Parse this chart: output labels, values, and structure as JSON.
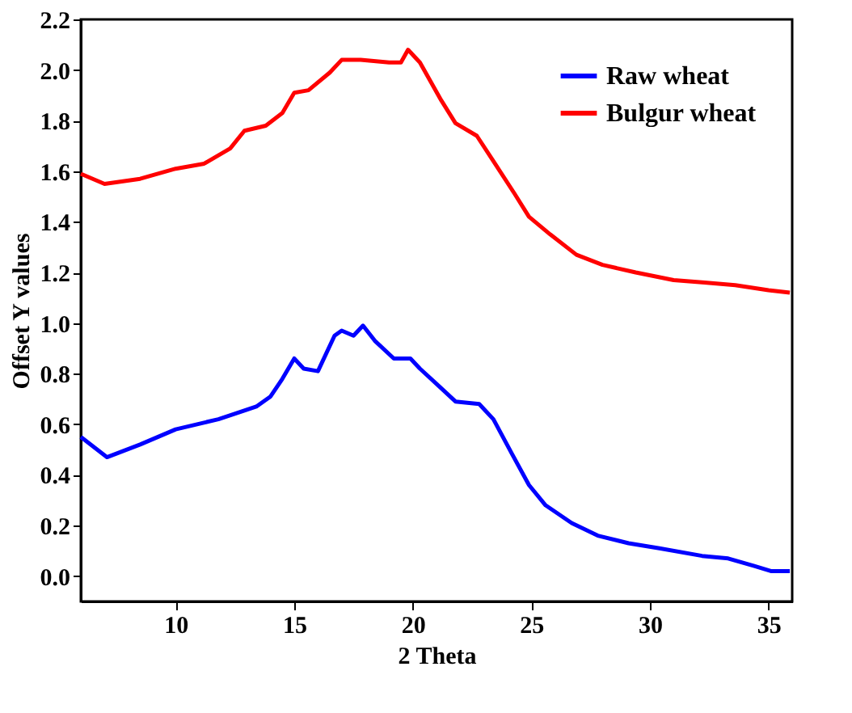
{
  "chart_data": {
    "type": "line",
    "xlabel": "2 Theta",
    "ylabel": "Offset Y values",
    "xlim": [
      6,
      36
    ],
    "xticks": [
      10,
      15,
      20,
      25,
      30,
      35
    ],
    "ylim": [
      -0.1,
      2.2
    ],
    "yticks": [
      {
        "value": 0,
        "label": "0.0"
      },
      {
        "value": 0.2,
        "label": "0.2"
      },
      {
        "value": 0.4,
        "label": "0.4"
      },
      {
        "value": 0.6,
        "label": "0.6"
      },
      {
        "value": 0.8,
        "label": "0.8"
      },
      {
        "value": 1.0,
        "label": "1.0"
      },
      {
        "value": 1.2,
        "label": "1.2"
      },
      {
        "value": 1.4,
        "label": "1.4"
      },
      {
        "value": 1.6,
        "label": "1.6"
      },
      {
        "value": 1.8,
        "label": "1.8"
      },
      {
        "value": 2.0,
        "label": "2.0"
      },
      {
        "value": 2.2,
        "label": "2.2"
      }
    ],
    "grid": false,
    "legend": "top right",
    "marker": "none",
    "line_style": "solid",
    "series": [
      {
        "name": "Raw wheat",
        "color": "#0000ff",
        "x": [
          6.0,
          7.1,
          8.5,
          10.0,
          11.8,
          13.4,
          14.0,
          14.5,
          15.0,
          15.4,
          16.0,
          16.7,
          17.0,
          17.5,
          17.9,
          18.4,
          19.2,
          19.9,
          20.3,
          21.0,
          21.8,
          22.8,
          23.4,
          24.2,
          24.9,
          25.6,
          26.7,
          27.8,
          29.1,
          30.4,
          32.2,
          33.3,
          34.4,
          35.1,
          35.9
        ],
        "values": [
          0.55,
          0.47,
          0.52,
          0.58,
          0.62,
          0.67,
          0.71,
          0.78,
          0.86,
          0.82,
          0.81,
          0.95,
          0.97,
          0.95,
          0.99,
          0.93,
          0.86,
          0.86,
          0.82,
          0.76,
          0.69,
          0.68,
          0.62,
          0.48,
          0.36,
          0.28,
          0.21,
          0.16,
          0.13,
          0.11,
          0.08,
          0.07,
          0.04,
          0.02,
          0.02
        ]
      },
      {
        "name": "Bulgur wheat",
        "color": "#ff0000",
        "x": [
          6.0,
          7.0,
          8.5,
          10.0,
          11.2,
          12.3,
          12.9,
          13.8,
          14.5,
          15.0,
          15.6,
          16.5,
          17.0,
          17.8,
          19.0,
          19.5,
          19.8,
          20.3,
          21.2,
          21.8,
          22.7,
          23.4,
          24.3,
          24.9,
          25.8,
          26.9,
          28.0,
          29.4,
          31.0,
          32.3,
          33.6,
          35.0,
          35.9
        ],
        "values": [
          1.59,
          1.55,
          1.57,
          1.61,
          1.63,
          1.69,
          1.76,
          1.78,
          1.83,
          1.91,
          1.92,
          1.99,
          2.04,
          2.04,
          2.03,
          2.03,
          2.08,
          2.03,
          1.88,
          1.79,
          1.74,
          1.64,
          1.51,
          1.42,
          1.35,
          1.27,
          1.23,
          1.2,
          1.17,
          1.16,
          1.15,
          1.13,
          1.12
        ]
      }
    ]
  }
}
